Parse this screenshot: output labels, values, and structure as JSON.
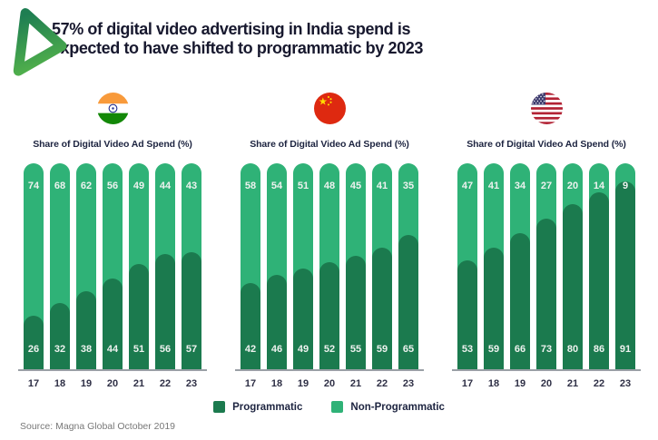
{
  "header": {
    "title_line1": "57% of digital video advertising in India spend is",
    "title_line2": "expected to have shifted to programmatic by 2023"
  },
  "icons": {
    "logo": "play-triangle-icon",
    "flags": [
      "india-flag-icon",
      "china-flag-icon",
      "usa-flag-icon"
    ]
  },
  "colors": {
    "programmatic": "#1B7A4E",
    "non_programmatic": "#2FB277",
    "axis_line": "#9AA0A6",
    "title_text": "#17182E"
  },
  "chart_data": [
    {
      "type": "bar",
      "stacked": true,
      "country": "India",
      "title": "Share of Digital Video Ad Spend (%)",
      "categories": [
        "17",
        "18",
        "19",
        "20",
        "21",
        "22",
        "23"
      ],
      "series": [
        {
          "name": "Programmatic",
          "values": [
            26,
            32,
            38,
            44,
            51,
            56,
            57
          ]
        },
        {
          "name": "Non-Programmatic",
          "values": [
            74,
            68,
            62,
            56,
            49,
            44,
            43
          ]
        }
      ],
      "ylim": [
        0,
        100
      ],
      "value_labels": "inside",
      "legend_position": "bottom"
    },
    {
      "type": "bar",
      "stacked": true,
      "country": "China",
      "title": "Share of Digital Video Ad Spend (%)",
      "categories": [
        "17",
        "18",
        "19",
        "20",
        "21",
        "22",
        "23"
      ],
      "series": [
        {
          "name": "Programmatic",
          "values": [
            42,
            46,
            49,
            52,
            55,
            59,
            65
          ]
        },
        {
          "name": "Non-Programmatic",
          "values": [
            58,
            54,
            51,
            48,
            45,
            41,
            35
          ]
        }
      ],
      "ylim": [
        0,
        100
      ],
      "value_labels": "inside",
      "legend_position": "bottom"
    },
    {
      "type": "bar",
      "stacked": true,
      "country": "United States",
      "title": "Share of Digital Video Ad Spend (%)",
      "categories": [
        "17",
        "18",
        "19",
        "20",
        "21",
        "22",
        "23"
      ],
      "series": [
        {
          "name": "Programmatic",
          "values": [
            53,
            59,
            66,
            73,
            80,
            86,
            91
          ]
        },
        {
          "name": "Non-Programmatic",
          "values": [
            47,
            41,
            34,
            27,
            20,
            14,
            9
          ]
        }
      ],
      "ylim": [
        0,
        100
      ],
      "value_labels": "inside",
      "legend_position": "bottom"
    }
  ],
  "legend": {
    "items": [
      {
        "label": "Programmatic",
        "color": "#1B7A4E"
      },
      {
        "label": "Non-Programmatic",
        "color": "#2FB277"
      }
    ]
  },
  "source": "Source: Magna Global October 2019"
}
